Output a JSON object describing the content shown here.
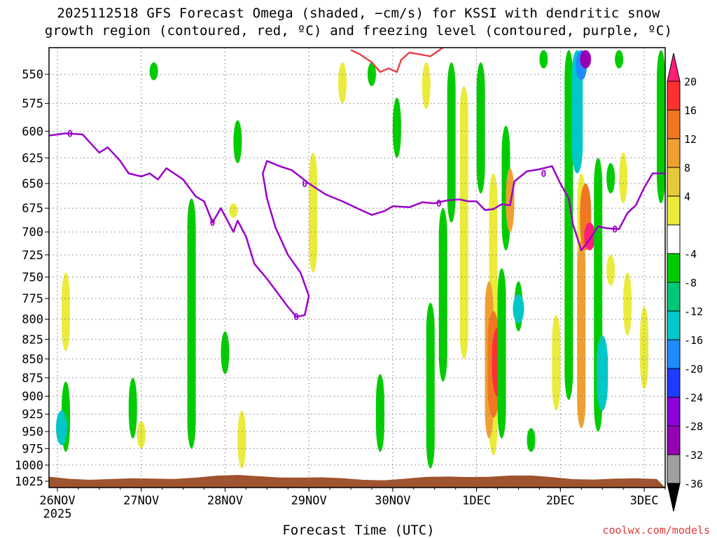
{
  "title_line1": "2025112518 GFS Forecast Omega (shaded, −cm/s) for KSSI with dendritic snow",
  "title_line2": "growth region (contoured, red, ºC) and freezing level (contoured, purple, ºC)",
  "credit": "coolwx.com/models",
  "chart_data": {
    "type": "heatmap",
    "title": "2025112518 GFS Forecast Omega (shaded, −cm/s) for KSSI with dendritic snow growth region (contoured, red, ºC) and freezing level (contoured, purple, ºC)",
    "xlabel": "Forecast Time (UTC)",
    "ylabel": "",
    "x_ticks": [
      "26NOV",
      "27NOV",
      "28NOV",
      "29NOV",
      "30NOV",
      "1DEC",
      "2DEC",
      "3DEC"
    ],
    "x_year_label": "2025",
    "x_range_days": [
      -0.1,
      7.25
    ],
    "y_ticks": [
      550,
      575,
      600,
      625,
      650,
      675,
      700,
      725,
      750,
      775,
      800,
      825,
      850,
      875,
      900,
      925,
      950,
      975,
      1000,
      1025
    ],
    "y_range_hpa": [
      528,
      1035
    ],
    "y_scale": "log-pressure (inverted)",
    "grid": true,
    "colorbar": {
      "ticks": [
        20,
        16,
        12,
        8,
        4,
        -4,
        -8,
        -12,
        -16,
        -20,
        -24,
        -28,
        -32,
        -36
      ],
      "colors": [
        "#ff1e78",
        "#ff3030",
        "#f07822",
        "#f0a032",
        "#e6c83c",
        "#ebeb3c",
        "#ffffff",
        "#00cc00",
        "#00c878",
        "#00c8c8",
        "#1e8cff",
        "#1e3cff",
        "#8c00dc",
        "#9600b4",
        "#a0a0a0",
        "#000000"
      ],
      "placement": "right"
    },
    "freezing_level": {
      "label": "0",
      "color": "#9b00c8",
      "points": [
        [
          -0.1,
          604
        ],
        [
          0.1,
          602
        ],
        [
          0.3,
          603
        ],
        [
          0.5,
          620
        ],
        [
          0.6,
          615
        ],
        [
          0.75,
          628
        ],
        [
          0.85,
          640
        ],
        [
          1.0,
          643
        ],
        [
          1.1,
          640
        ],
        [
          1.2,
          646
        ],
        [
          1.3,
          635
        ],
        [
          1.5,
          646
        ],
        [
          1.65,
          663
        ],
        [
          1.75,
          668
        ],
        [
          1.85,
          690
        ],
        [
          1.95,
          675
        ],
        [
          2.1,
          700
        ],
        [
          2.15,
          688
        ],
        [
          2.25,
          705
        ],
        [
          2.35,
          735
        ],
        [
          2.5,
          752
        ],
        [
          2.6,
          765
        ],
        [
          2.75,
          785
        ],
        [
          2.85,
          797
        ],
        [
          2.95,
          795
        ],
        [
          3.0,
          772
        ],
        [
          2.9,
          745
        ],
        [
          2.75,
          725
        ],
        [
          2.6,
          695
        ],
        [
          2.5,
          665
        ],
        [
          2.45,
          640
        ],
        [
          2.5,
          628
        ],
        [
          2.65,
          633
        ],
        [
          2.8,
          637
        ],
        [
          3.0,
          650
        ],
        [
          3.2,
          661
        ],
        [
          3.4,
          668
        ],
        [
          3.6,
          676
        ],
        [
          3.75,
          682
        ],
        [
          3.9,
          678
        ],
        [
          4.0,
          673
        ],
        [
          4.2,
          674
        ],
        [
          4.35,
          669
        ],
        [
          4.5,
          670
        ],
        [
          4.65,
          667
        ],
        [
          4.8,
          666
        ],
        [
          4.9,
          668
        ],
        [
          5.0,
          668
        ],
        [
          5.1,
          677
        ],
        [
          5.2,
          676
        ],
        [
          5.3,
          671
        ],
        [
          5.4,
          672
        ],
        [
          5.45,
          648
        ],
        [
          5.6,
          638
        ],
        [
          5.75,
          636
        ],
        [
          5.9,
          633
        ],
        [
          6.0,
          650
        ],
        [
          6.1,
          665
        ],
        [
          6.15,
          692
        ],
        [
          6.25,
          720
        ],
        [
          6.35,
          708
        ],
        [
          6.45,
          694
        ],
        [
          6.55,
          696
        ],
        [
          6.7,
          697
        ],
        [
          6.8,
          680
        ],
        [
          6.9,
          672
        ],
        [
          7.0,
          654
        ],
        [
          7.1,
          640
        ],
        [
          7.25,
          640
        ]
      ]
    },
    "dendritic_zone": {
      "color": "#e8444a",
      "points": [
        [
          3.5,
          530
        ],
        [
          3.6,
          533
        ],
        [
          3.75,
          540
        ],
        [
          3.85,
          548
        ],
        [
          3.95,
          545
        ],
        [
          4.05,
          548
        ],
        [
          4.1,
          538
        ],
        [
          4.2,
          532
        ],
        [
          4.45,
          535
        ],
        [
          4.6,
          528
        ]
      ]
    },
    "omega_regions": [
      {
        "center_day": 0.1,
        "press_top": 880,
        "press_bot": 980,
        "value": -8
      },
      {
        "center_day": 0.05,
        "press_top": 920,
        "press_bot": 970,
        "value": -12
      },
      {
        "center_day": 0.1,
        "press_top": 745,
        "press_bot": 840,
        "value": 4
      },
      {
        "center_day": 0.9,
        "press_top": 875,
        "press_bot": 960,
        "value": -8
      },
      {
        "center_day": 1.0,
        "press_top": 935,
        "press_bot": 975,
        "value": 4
      },
      {
        "center_day": 1.15,
        "press_top": 540,
        "press_bot": 555,
        "value": -8
      },
      {
        "center_day": 1.6,
        "press_top": 665,
        "press_bot": 975,
        "value": -8
      },
      {
        "center_day": 2.0,
        "press_top": 815,
        "press_bot": 870,
        "value": -8
      },
      {
        "center_day": 2.15,
        "press_top": 590,
        "press_bot": 630,
        "value": -8
      },
      {
        "center_day": 2.2,
        "press_top": 920,
        "press_bot": 1005,
        "value": 4
      },
      {
        "center_day": 2.1,
        "press_top": 670,
        "press_bot": 685,
        "value": 4
      },
      {
        "center_day": 3.05,
        "press_top": 620,
        "press_bot": 745,
        "value": 4
      },
      {
        "center_day": 3.4,
        "press_top": 540,
        "press_bot": 575,
        "value": 4
      },
      {
        "center_day": 3.75,
        "press_top": 540,
        "press_bot": 560,
        "value": -8
      },
      {
        "center_day": 3.85,
        "press_top": 870,
        "press_bot": 980,
        "value": -8
      },
      {
        "center_day": 4.05,
        "press_top": 570,
        "press_bot": 625,
        "value": -8
      },
      {
        "center_day": 4.4,
        "press_top": 540,
        "press_bot": 580,
        "value": 4
      },
      {
        "center_day": 4.45,
        "press_top": 780,
        "press_bot": 1005,
        "value": -8
      },
      {
        "center_day": 4.6,
        "press_top": 675,
        "press_bot": 880,
        "value": -8
      },
      {
        "center_day": 4.7,
        "press_top": 540,
        "press_bot": 690,
        "value": -8
      },
      {
        "center_day": 4.85,
        "press_top": 560,
        "press_bot": 850,
        "value": 4
      },
      {
        "center_day": 5.05,
        "press_top": 540,
        "press_bot": 660,
        "value": -8
      },
      {
        "center_day": 5.2,
        "press_top": 640,
        "press_bot": 985,
        "value": 4
      },
      {
        "center_day": 5.15,
        "press_top": 755,
        "press_bot": 960,
        "value": 8
      },
      {
        "center_day": 5.2,
        "press_top": 790,
        "press_bot": 930,
        "value": 12
      },
      {
        "center_day": 5.25,
        "press_top": 810,
        "press_bot": 900,
        "value": 16
      },
      {
        "center_day": 5.3,
        "press_top": 740,
        "press_bot": 960,
        "value": -8
      },
      {
        "center_day": 5.35,
        "press_top": 595,
        "press_bot": 720,
        "value": -8
      },
      {
        "center_day": 5.4,
        "press_top": 650,
        "press_bot": 690,
        "value": 4
      },
      {
        "center_day": 5.4,
        "press_top": 635,
        "press_bot": 700,
        "value": 8
      },
      {
        "center_day": 5.5,
        "press_top": 755,
        "press_bot": 815,
        "value": -8
      },
      {
        "center_day": 5.5,
        "press_top": 770,
        "press_bot": 805,
        "value": -12
      },
      {
        "center_day": 5.65,
        "press_top": 945,
        "press_bot": 980,
        "value": -8
      },
      {
        "center_day": 5.8,
        "press_top": 530,
        "press_bot": 545,
        "value": -8
      },
      {
        "center_day": 5.95,
        "press_top": 795,
        "press_bot": 920,
        "value": 4
      },
      {
        "center_day": 6.1,
        "press_top": 530,
        "press_bot": 905,
        "value": -8
      },
      {
        "center_day": 6.2,
        "press_top": 530,
        "press_bot": 640,
        "value": -12
      },
      {
        "center_day": 6.25,
        "press_top": 530,
        "press_bot": 555,
        "value": -16
      },
      {
        "center_day": 6.3,
        "press_top": 530,
        "press_bot": 545,
        "value": -28
      },
      {
        "center_day": 6.25,
        "press_top": 640,
        "press_bot": 945,
        "value": 4
      },
      {
        "center_day": 6.25,
        "press_top": 710,
        "press_bot": 945,
        "value": 8
      },
      {
        "center_day": 6.3,
        "press_top": 650,
        "press_bot": 720,
        "value": 12
      },
      {
        "center_day": 6.35,
        "press_top": 690,
        "press_bot": 720,
        "value": 20
      },
      {
        "center_day": 6.45,
        "press_top": 625,
        "press_bot": 950,
        "value": -8
      },
      {
        "center_day": 6.5,
        "press_top": 820,
        "press_bot": 920,
        "value": -12
      },
      {
        "center_day": 6.6,
        "press_top": 630,
        "press_bot": 660,
        "value": -8
      },
      {
        "center_day": 6.7,
        "press_top": 530,
        "press_bot": 545,
        "value": -8
      },
      {
        "center_day": 6.6,
        "press_top": 725,
        "press_bot": 760,
        "value": 4
      },
      {
        "center_day": 6.75,
        "press_top": 620,
        "press_bot": 670,
        "value": 4
      },
      {
        "center_day": 6.8,
        "press_top": 745,
        "press_bot": 820,
        "value": 4
      },
      {
        "center_day": 7.0,
        "press_top": 785,
        "press_bot": 890,
        "value": 4
      },
      {
        "center_day": 7.2,
        "press_top": 530,
        "press_bot": 670,
        "value": -8
      }
    ],
    "surface_band": {
      "color": "#a0522d",
      "press_top": 1015
    }
  }
}
